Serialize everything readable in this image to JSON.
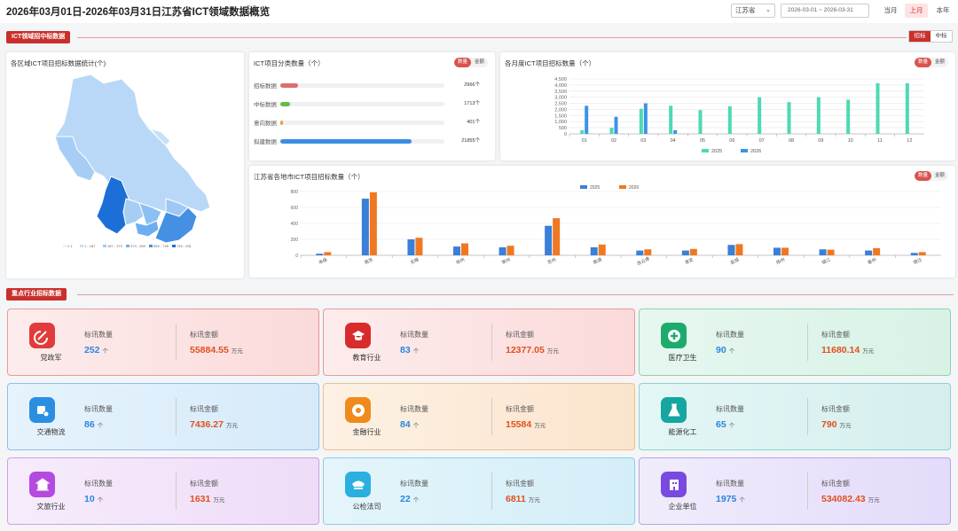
{
  "header": {
    "title": "2026年03月01日-2026年03月31日江苏省ICT领域数据概览",
    "region_select": "江苏省",
    "date_range": "2026-03-01 ~ 2026-03-31",
    "period_buttons": [
      "当月",
      "上月",
      "本年"
    ],
    "active_period": "上月"
  },
  "section1": {
    "tag": "ICT领域招中标数据",
    "toggle": [
      "招标",
      "中标"
    ],
    "active_toggle": "招标"
  },
  "map_card": {
    "title": "各区域ICT项目招标数据统计(个)",
    "legend": [
      "≤ 1",
      "1 - 187",
      "187 - 373",
      "373 - 559",
      "559 - 745",
      "745 - 931"
    ]
  },
  "category_card": {
    "title": "ICT项目分类数量（个）",
    "toggle": [
      "数量",
      "金额"
    ],
    "items": [
      {
        "label": "招标数据",
        "value_text": "2966个",
        "ratio": 0.11,
        "color": "#e06c6c"
      },
      {
        "label": "中标数据",
        "value_text": "1713个",
        "ratio": 0.06,
        "color": "#66bb44"
      },
      {
        "label": "意向数据",
        "value_text": "401个",
        "ratio": 0.015,
        "color": "#f0a030"
      },
      {
        "label": "拟建数据",
        "value_text": "21855个",
        "ratio": 0.8,
        "color": "#3a8ee6"
      }
    ]
  },
  "colors": {
    "accent": "#c9302c",
    "series2025_monthly": "#4dd9b4",
    "series2026_monthly": "#3a94e8",
    "series2025_city": "#3a7fd8",
    "series2026_city": "#f07820"
  },
  "chart_data": [
    {
      "type": "bar",
      "title": "各月度ICT项目招标数量（个）",
      "toggle": [
        "数量",
        "金额"
      ],
      "categories": [
        "01",
        "02",
        "03",
        "04",
        "05",
        "06",
        "07",
        "08",
        "09",
        "10",
        "11",
        "12"
      ],
      "series": [
        {
          "name": "2025",
          "values": [
            300,
            500,
            2050,
            2300,
            1950,
            2250,
            3000,
            2600,
            3000,
            2800,
            4150,
            4150
          ]
        },
        {
          "name": "2026",
          "values": [
            2300,
            1400,
            2500,
            300,
            0,
            0,
            0,
            0,
            0,
            0,
            0,
            0
          ]
        }
      ],
      "y_ticks": [
        "0",
        "500",
        "1,000",
        "1,500",
        "2,000",
        "2,500",
        "3,000",
        "3,500",
        "4,000",
        "4,500"
      ],
      "ylim": [
        0,
        4500
      ],
      "legend": [
        "2025",
        "2026"
      ]
    },
    {
      "type": "bar",
      "title": "江苏省各地市ICT项目招标数量（个）",
      "toggle": [
        "数量",
        "金额"
      ],
      "categories": [
        "本级",
        "南京",
        "无锡",
        "徐州",
        "常州",
        "苏州",
        "南通",
        "连云港",
        "淮安",
        "盐城",
        "扬州",
        "镇江",
        "泰州",
        "宿迁"
      ],
      "series": [
        {
          "name": "2025",
          "values": [
            20,
            710,
            200,
            110,
            100,
            370,
            100,
            60,
            60,
            130,
            95,
            75,
            60,
            30
          ]
        },
        {
          "name": "2026",
          "values": [
            40,
            790,
            220,
            150,
            120,
            465,
            135,
            75,
            80,
            140,
            95,
            70,
            90,
            40
          ]
        }
      ],
      "y_ticks": [
        "0",
        "200",
        "400",
        "600",
        "800"
      ],
      "ylim": [
        0,
        800
      ],
      "legend": [
        "2025",
        "2026"
      ]
    }
  ],
  "section2": {
    "tag": "重点行业招标数据"
  },
  "industries": [
    {
      "name": "党政军",
      "count_label": "标讯数量",
      "count": "252",
      "count_unit": "个",
      "amount_label": "标讯金额",
      "amount": "55884.55",
      "amount_unit": "万元",
      "icon": "party-icon"
    },
    {
      "name": "教育行业",
      "count_label": "标讯数量",
      "count": "83",
      "count_unit": "个",
      "amount_label": "标讯金额",
      "amount": "12377.05",
      "amount_unit": "万元",
      "icon": "graduation-cap-icon"
    },
    {
      "name": "医疗卫生",
      "count_label": "标讯数量",
      "count": "90",
      "count_unit": "个",
      "amount_label": "标讯金额",
      "amount": "11680.14",
      "amount_unit": "万元",
      "icon": "medical-cross-icon"
    },
    {
      "name": "交通物流",
      "count_label": "标讯数量",
      "count": "86",
      "count_unit": "个",
      "amount_label": "标讯金额",
      "amount": "7436.27",
      "amount_unit": "万元",
      "icon": "logistics-box-icon"
    },
    {
      "name": "金融行业",
      "count_label": "标讯数量",
      "count": "84",
      "count_unit": "个",
      "amount_label": "标讯金额",
      "amount": "15584",
      "amount_unit": "万元",
      "icon": "coin-icon"
    },
    {
      "name": "能源化工",
      "count_label": "标讯数量",
      "count": "65",
      "count_unit": "个",
      "amount_label": "标讯金额",
      "amount": "790",
      "amount_unit": "万元",
      "icon": "flask-icon"
    },
    {
      "name": "文旅行业",
      "count_label": "标讯数量",
      "count": "10",
      "count_unit": "个",
      "amount_label": "标讯金额",
      "amount": "1631",
      "amount_unit": "万元",
      "icon": "pavilion-icon"
    },
    {
      "name": "公检法司",
      "count_label": "标讯数量",
      "count": "22",
      "count_unit": "个",
      "amount_label": "标讯金额",
      "amount": "6811",
      "amount_unit": "万元",
      "icon": "police-cap-icon"
    },
    {
      "name": "企业单位",
      "count_label": "标讯数量",
      "count": "1975",
      "count_unit": "个",
      "amount_label": "标讯金额",
      "amount": "534082.43",
      "amount_unit": "万元",
      "icon": "building-icon"
    }
  ]
}
